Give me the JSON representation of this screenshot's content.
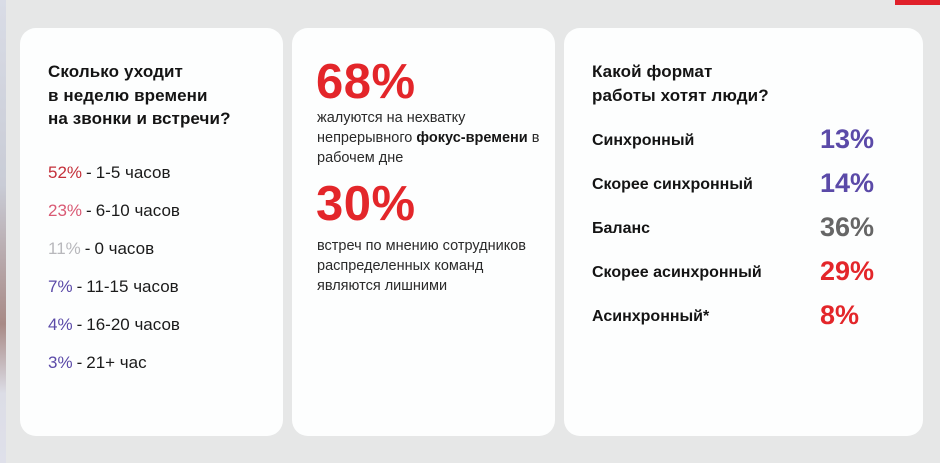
{
  "colors": {
    "background": "#e6e7e7",
    "card": "#fdfefe",
    "accent_red": "#e0202a",
    "stat_red": "#e3262a",
    "dark_red": "#c4303a",
    "pink": "#d95a74",
    "light_gray": "#b8b8bc",
    "purple": "#5b4aa8",
    "gray": "#666666"
  },
  "card_hours": {
    "title": "Сколько уходит\nв неделю времени\nна звонки и встречи?",
    "items": [
      {
        "percent": "52%",
        "separator": "-",
        "label": "1-5 часов",
        "color": "#c4303a"
      },
      {
        "percent": "23%",
        "separator": "-",
        "label": "6-10 часов",
        "color": "#d95a74"
      },
      {
        "percent": "11%",
        "separator": "-",
        "label": "0 часов",
        "color": "#b8b8bc"
      },
      {
        "percent": "7%",
        "separator": "-",
        "label": "11-15 часов",
        "color": "#5b4aa8"
      },
      {
        "percent": "4%",
        "separator": "-",
        "label": "16-20 часов",
        "color": "#5b4aa8"
      },
      {
        "percent": "3%",
        "separator": "-",
        "label": "21+ час",
        "color": "#5b4aa8"
      }
    ]
  },
  "card_stats": {
    "stat1": {
      "value": "68%",
      "text_part1": "жалуются на нехватку непрерывного ",
      "text_bold": "фокус-времени",
      "text_part2": " в рабочем дне"
    },
    "stat2": {
      "value": "30%",
      "text": "встреч по мнению сотрудников распределенных команд являются лишними"
    }
  },
  "card_format": {
    "title": "Какой формат\nработы хотят люди?",
    "items": [
      {
        "label": "Синхронный",
        "value": "13%",
        "color": "#5b4aa8"
      },
      {
        "label": "Скорее синхронный",
        "value": "14%",
        "color": "#5b4aa8"
      },
      {
        "label": "Баланс",
        "value": "36%",
        "color": "#666666"
      },
      {
        "label": "Скорее асинхронный",
        "value": "29%",
        "color": "#e3262a"
      },
      {
        "label": "Асинхронный*",
        "value": "8%",
        "color": "#e3262a"
      }
    ]
  }
}
